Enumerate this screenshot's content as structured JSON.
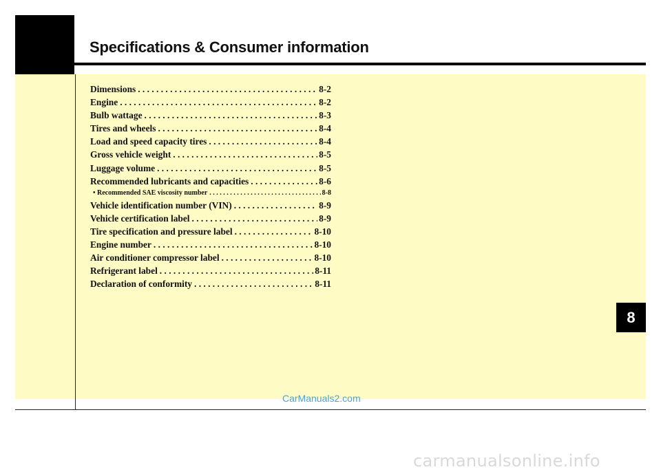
{
  "header": {
    "title": "Specifications & Consumer information"
  },
  "toc": [
    {
      "label": "Dimensions",
      "page": "8-2"
    },
    {
      "label": "Engine",
      "page": "8-2"
    },
    {
      "label": "Bulb wattage",
      "page": "8-3"
    },
    {
      "label": "Tires and wheels",
      "page": "8-4"
    },
    {
      "label": "Load and speed capacity tires",
      "page": "8-4"
    },
    {
      "label": "Gross vehicle weight",
      "page": "8-5"
    },
    {
      "label": "Luggage volume",
      "page": "8-5"
    },
    {
      "label": "Recommended lubricants and capacities",
      "page": "8-6"
    },
    {
      "label": "• Recommended SAE viscosity number",
      "page": "8-8"
    },
    {
      "label": "Vehicle identification number (VIN)",
      "page": "8-9"
    },
    {
      "label": "Vehicle certification label",
      "page": "8-9"
    },
    {
      "label": "Tire specification and pressure label",
      "page": "8-10"
    },
    {
      "label": "Engine number",
      "page": "8-10"
    },
    {
      "label": "Air conditioner compressor label",
      "page": "8-10"
    },
    {
      "label": "Refrigerant label",
      "page": "8-11"
    },
    {
      "label": "Declaration of conformity",
      "page": "8-11"
    }
  ],
  "chapter_tab": "8",
  "watermarks": {
    "site_1": "CarManuals2.com",
    "site_2": "carmanualsonline.info"
  },
  "colors": {
    "panel": "#fefbc4",
    "tab": "#000000",
    "watermark_1": "#4aa3d8",
    "watermark_2": "#d9d9d9"
  }
}
